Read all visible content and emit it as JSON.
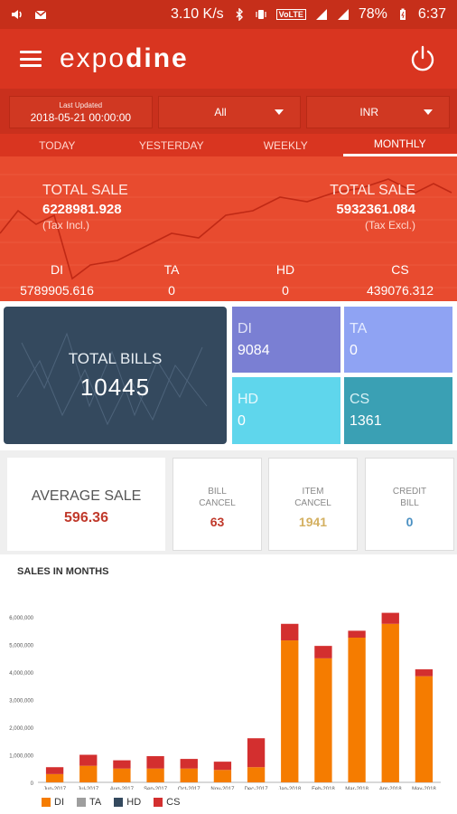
{
  "status": {
    "speed": "3.10 K/s",
    "volte": "VoLTE",
    "battery": "78%",
    "time": "6:37"
  },
  "app": {
    "brand_light": "expo",
    "brand_bold": "dine"
  },
  "filters": {
    "last_updated_label": "Last Updated",
    "last_updated": "2018-05-21 00:00:00",
    "channel": "All",
    "currency": "INR"
  },
  "tabs": [
    "TODAY",
    "YESTERDAY",
    "WEEKLY",
    "MONTHLY"
  ],
  "sale": {
    "total_incl_label": "TOTAL SALE",
    "total_incl": "6228981.928",
    "incl_note": "(Tax Incl.)",
    "total_excl_label": "TOTAL SALE",
    "total_excl": "5932361.084",
    "excl_note": "(Tax Excl.)",
    "channels": [
      {
        "label": "DI",
        "value": "5789905.616"
      },
      {
        "label": "TA",
        "value": "0"
      },
      {
        "label": "HD",
        "value": "0"
      },
      {
        "label": "CS",
        "value": "439076.312"
      }
    ]
  },
  "bills": {
    "total_label": "TOTAL BILLS",
    "total": "10445",
    "di_label": "DI",
    "di": "9084",
    "ta_label": "TA",
    "ta": "0",
    "hd_label": "HD",
    "hd": "0",
    "cs_label": "CS",
    "cs": "1361"
  },
  "stats": {
    "avg_label": "AVERAGE SALE",
    "avg": "596.36",
    "bill_cancel_label": "BILL CANCEL",
    "bill_cancel": "63",
    "item_cancel_label": "ITEM CANCEL",
    "item_cancel": "1941",
    "credit_bill_label": "CREDIT BILL",
    "credit_bill": "0"
  },
  "colors": {
    "di": "#f57c00",
    "ta": "#9e9e9e",
    "hd": "#34495e",
    "cs": "#d32f2f",
    "bill_cancel": "#c0392b",
    "item_cancel": "#d4b061",
    "credit_bill": "#4a90c2"
  },
  "chart_data": {
    "type": "bar",
    "title": "SALES IN MONTHS",
    "stacked": true,
    "categories": [
      "Jun-2017",
      "Jul-2017",
      "Aug-2017",
      "Sep-2017",
      "Oct-2017",
      "Nov-2017",
      "Dec-2017",
      "Jan-2018",
      "Feb-2018",
      "Mar-2018",
      "Apr-2018",
      "May-2018"
    ],
    "series": [
      {
        "name": "DI",
        "values": [
          300000,
          600000,
          500000,
          500000,
          500000,
          450000,
          550000,
          5150000,
          4500000,
          5250000,
          5750000,
          3850000
        ]
      },
      {
        "name": "TA",
        "values": [
          0,
          0,
          0,
          0,
          0,
          0,
          0,
          0,
          0,
          0,
          0,
          0
        ]
      },
      {
        "name": "HD",
        "values": [
          0,
          0,
          0,
          0,
          0,
          0,
          0,
          0,
          0,
          0,
          0,
          0
        ]
      },
      {
        "name": "CS",
        "values": [
          250000,
          400000,
          300000,
          450000,
          350000,
          300000,
          1050000,
          600000,
          450000,
          250000,
          400000,
          250000
        ]
      }
    ],
    "yticks": [
      "0",
      "1,000,000",
      "2,000,000",
      "3,000,000",
      "4,000,000",
      "5,000,000",
      "6,000,000"
    ],
    "ylim": [
      0,
      6300000
    ],
    "legend": "bottom-left"
  }
}
